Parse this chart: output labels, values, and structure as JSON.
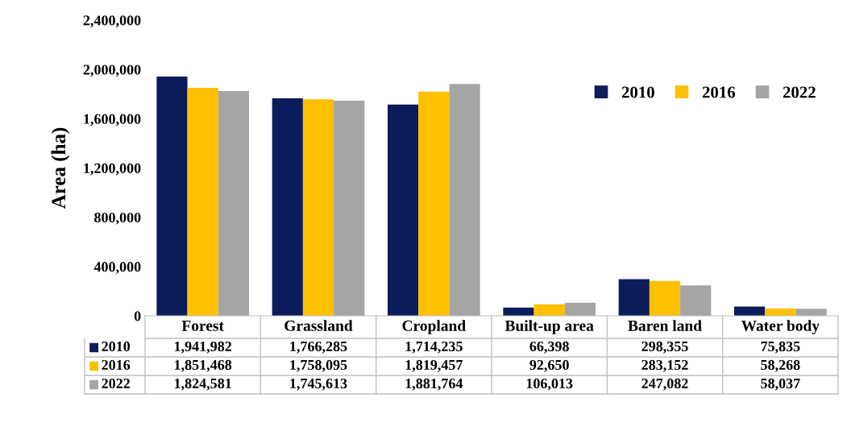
{
  "chart_data": {
    "type": "bar",
    "ylabel": "Area (ha)",
    "categories": [
      "Forest",
      "Grassland",
      "Cropland",
      "Built-up area",
      "Baren land",
      "Water body"
    ],
    "series": [
      {
        "name": "2010",
        "color": "#0c1c5a",
        "values": [
          1941982,
          1766285,
          1714235,
          66398,
          298355,
          75835
        ],
        "value_labels": [
          "1,941,982",
          "1,766,285",
          "1,714,235",
          "66,398",
          "298,355",
          "75,835"
        ]
      },
      {
        "name": "2016",
        "color": "#ffc000",
        "values": [
          1851468,
          1758095,
          1819457,
          92650,
          283152,
          58268
        ],
        "value_labels": [
          "1,851,468",
          "1,758,095",
          "1,819,457",
          "92,650",
          "283,152",
          "58,268"
        ]
      },
      {
        "name": "2022",
        "color": "#a5a5a5",
        "values": [
          1824581,
          1745613,
          1881764,
          106013,
          247082,
          58037
        ],
        "value_labels": [
          "1,824,581",
          "1,745,613",
          "1,881,764",
          "106,013",
          "247,082",
          "58,037"
        ]
      }
    ],
    "ylim": [
      0,
      2400000
    ],
    "yticks": [
      {
        "value": 0,
        "label": "0"
      },
      {
        "value": 400000,
        "label": "400,000"
      },
      {
        "value": 800000,
        "label": "800,000"
      },
      {
        "value": 1200000,
        "label": "1,200,000"
      },
      {
        "value": 1600000,
        "label": "1,600,000"
      },
      {
        "value": 2000000,
        "label": "2,000,000"
      },
      {
        "value": 2400000,
        "label": "2,400,000"
      }
    ],
    "legend": "top right",
    "grid": false
  }
}
